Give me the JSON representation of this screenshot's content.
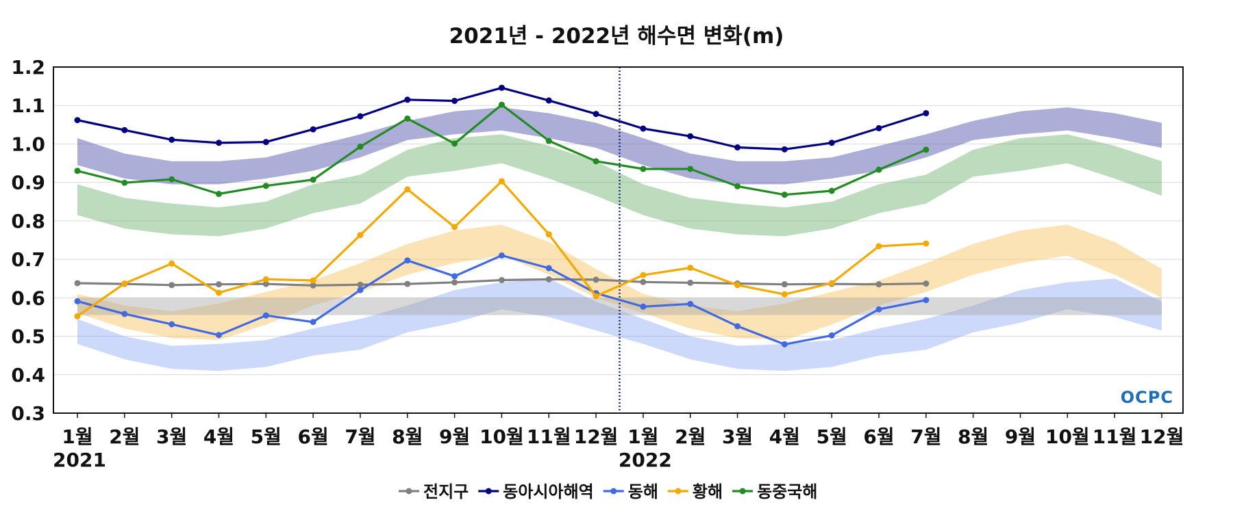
{
  "chart_data": {
    "type": "line",
    "title": "2021년 - 2022년 해수면 변화(m)",
    "xlabel": "",
    "ylabel": "",
    "ylim": [
      0.3,
      1.2
    ],
    "yticks": [
      "0.3",
      "0.4",
      "0.5",
      "0.6",
      "0.7",
      "0.8",
      "0.9",
      "1.0",
      "1.1",
      "1.2"
    ],
    "categories": [
      "1월",
      "2월",
      "3월",
      "4월",
      "5월",
      "6월",
      "7월",
      "8월",
      "9월",
      "10월",
      "11월",
      "12월",
      "1월",
      "2월",
      "3월",
      "4월",
      "5월",
      "6월",
      "7월",
      "8월",
      "9월",
      "10월",
      "11월",
      "12월"
    ],
    "year_labels": [
      {
        "text": "2021",
        "index": 0
      },
      {
        "text": "2022",
        "index": 12
      }
    ],
    "divider_between": [
      11,
      12
    ],
    "grid": true,
    "legend_position": "bottom",
    "series": [
      {
        "name": "전지구",
        "color": "#808080",
        "values": [
          0.638,
          0.636,
          0.633,
          0.635,
          0.636,
          0.632,
          0.634,
          0.636,
          0.64,
          0.646,
          0.648,
          0.647,
          0.641,
          0.639,
          0.637,
          0.635,
          0.636,
          0.635,
          0.637,
          null,
          null,
          null,
          null,
          null
        ]
      },
      {
        "name": "동아시아해역",
        "color": "#000080",
        "values": [
          1.062,
          1.036,
          1.011,
          1.003,
          1.005,
          1.038,
          1.072,
          1.115,
          1.112,
          1.146,
          1.113,
          1.078,
          1.04,
          1.02,
          0.991,
          0.986,
          1.003,
          1.041,
          1.08,
          null,
          null,
          null,
          null,
          null
        ]
      },
      {
        "name": "동해",
        "color": "#4169E1",
        "values": [
          0.591,
          0.558,
          0.531,
          0.503,
          0.554,
          0.537,
          0.62,
          0.697,
          0.656,
          0.71,
          0.677,
          0.612,
          0.577,
          0.584,
          0.526,
          0.479,
          0.502,
          0.57,
          0.594,
          null,
          null,
          null,
          null,
          null
        ]
      },
      {
        "name": "황해",
        "color": "#F5A800",
        "values": [
          0.552,
          0.637,
          0.689,
          0.613,
          0.648,
          0.645,
          0.763,
          0.882,
          0.784,
          0.903,
          0.765,
          0.604,
          0.659,
          0.678,
          0.633,
          0.609,
          0.638,
          0.734,
          0.741,
          null,
          null,
          null,
          null,
          null
        ]
      },
      {
        "name": "동중국해",
        "color": "#228B22",
        "values": [
          0.93,
          0.899,
          0.908,
          0.87,
          0.891,
          0.907,
          0.993,
          1.066,
          1.001,
          1.102,
          1.008,
          0.955,
          0.935,
          0.935,
          0.89,
          0.868,
          0.878,
          0.933,
          0.985,
          null,
          null,
          null,
          null,
          null
        ]
      }
    ],
    "bands": [
      {
        "color": "#4a4ca8",
        "opacity": 0.45,
        "lower": [
          0.945,
          0.91,
          0.895,
          0.895,
          0.91,
          0.93,
          0.965,
          1.01,
          1.025,
          1.035,
          1.015,
          0.99,
          0.945,
          0.91,
          0.895,
          0.895,
          0.91,
          0.93,
          0.965,
          1.01,
          1.025,
          1.035,
          1.015,
          0.99
        ],
        "upper": [
          1.015,
          0.975,
          0.955,
          0.955,
          0.965,
          0.995,
          1.025,
          1.06,
          1.085,
          1.095,
          1.08,
          1.055,
          1.015,
          0.975,
          0.955,
          0.955,
          0.965,
          0.995,
          1.025,
          1.06,
          1.085,
          1.095,
          1.08,
          1.055
        ]
      },
      {
        "color": "#5aa85a",
        "opacity": 0.4,
        "lower": [
          0.815,
          0.78,
          0.765,
          0.76,
          0.78,
          0.82,
          0.845,
          0.915,
          0.93,
          0.95,
          0.91,
          0.865,
          0.815,
          0.78,
          0.765,
          0.76,
          0.78,
          0.82,
          0.845,
          0.915,
          0.93,
          0.95,
          0.91,
          0.865
        ],
        "upper": [
          0.895,
          0.86,
          0.845,
          0.835,
          0.85,
          0.895,
          0.92,
          0.985,
          1.015,
          1.025,
          0.995,
          0.955,
          0.895,
          0.86,
          0.845,
          0.835,
          0.85,
          0.895,
          0.92,
          0.985,
          1.015,
          1.025,
          0.995,
          0.955
        ]
      },
      {
        "color": "#f9c25a",
        "opacity": 0.45,
        "lower": [
          0.56,
          0.52,
          0.495,
          0.49,
          0.53,
          0.58,
          0.615,
          0.66,
          0.69,
          0.71,
          0.66,
          0.6,
          0.56,
          0.52,
          0.495,
          0.49,
          0.53,
          0.58,
          0.615,
          0.66,
          0.69,
          0.71,
          0.66,
          0.6
        ],
        "upper": [
          0.61,
          0.58,
          0.565,
          0.585,
          0.615,
          0.645,
          0.69,
          0.74,
          0.775,
          0.79,
          0.745,
          0.675,
          0.61,
          0.58,
          0.565,
          0.585,
          0.615,
          0.645,
          0.69,
          0.74,
          0.775,
          0.79,
          0.745,
          0.675
        ]
      },
      {
        "color": "#7f9ff5",
        "opacity": 0.4,
        "lower": [
          0.48,
          0.44,
          0.415,
          0.41,
          0.42,
          0.45,
          0.465,
          0.51,
          0.535,
          0.57,
          0.55,
          0.515,
          0.48,
          0.44,
          0.415,
          0.41,
          0.42,
          0.45,
          0.465,
          0.51,
          0.535,
          0.57,
          0.55,
          0.515
        ],
        "upper": [
          0.545,
          0.5,
          0.475,
          0.48,
          0.49,
          0.52,
          0.545,
          0.58,
          0.62,
          0.64,
          0.65,
          0.59,
          0.545,
          0.5,
          0.475,
          0.48,
          0.49,
          0.52,
          0.545,
          0.58,
          0.62,
          0.64,
          0.65,
          0.59
        ]
      },
      {
        "color": "#a8a8a8",
        "opacity": 0.45,
        "lower": [
          0.555,
          0.555,
          0.555,
          0.555,
          0.555,
          0.555,
          0.555,
          0.555,
          0.555,
          0.555,
          0.555,
          0.555,
          0.555,
          0.555,
          0.555,
          0.555,
          0.555,
          0.555,
          0.555,
          0.555,
          0.555,
          0.555,
          0.555,
          0.555
        ],
        "upper": [
          0.6,
          0.6,
          0.6,
          0.6,
          0.6,
          0.6,
          0.6,
          0.6,
          0.6,
          0.6,
          0.6,
          0.6,
          0.6,
          0.6,
          0.6,
          0.6,
          0.6,
          0.6,
          0.6,
          0.6,
          0.6,
          0.6,
          0.6,
          0.6
        ]
      }
    ],
    "watermark": "OCPC"
  }
}
